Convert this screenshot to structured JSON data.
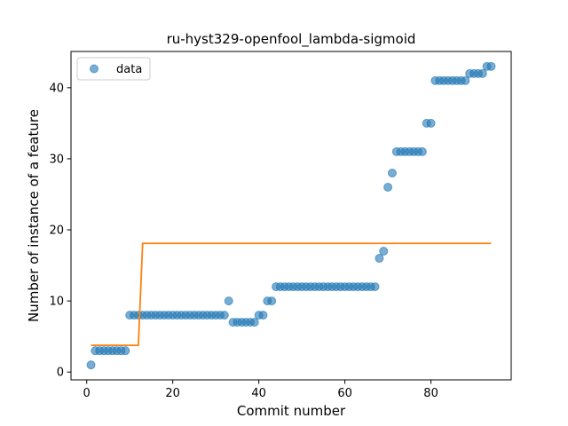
{
  "chart_data": {
    "type": "scatter",
    "title": "ru-hyst329-openfool_lambda-sigmoid",
    "xlabel": "Commit number",
    "ylabel": "Number of instance of a feature",
    "xlim": [
      -3.65,
      98.65
    ],
    "ylim": [
      -1.1,
      45.1
    ],
    "xticks": [
      0,
      20,
      40,
      60,
      80
    ],
    "yticks": [
      0,
      10,
      20,
      30,
      40
    ],
    "grid": false,
    "legend": {
      "placement": "top-left",
      "entries": [
        "data"
      ]
    },
    "colors": {
      "data": "#1f77b4",
      "fit": "#ff7f0e"
    },
    "series": [
      {
        "name": "data",
        "kind": "scatter",
        "x": [
          1,
          2,
          3,
          4,
          5,
          6,
          7,
          8,
          9,
          10,
          11,
          12,
          13,
          14,
          15,
          16,
          17,
          18,
          19,
          20,
          21,
          22,
          23,
          24,
          25,
          26,
          27,
          28,
          29,
          30,
          31,
          32,
          33,
          34,
          35,
          36,
          37,
          38,
          39,
          40,
          41,
          42,
          43,
          44,
          45,
          46,
          47,
          48,
          49,
          50,
          51,
          52,
          53,
          54,
          55,
          56,
          57,
          58,
          59,
          60,
          61,
          62,
          63,
          64,
          65,
          66,
          67,
          68,
          69,
          70,
          71,
          72,
          73,
          74,
          75,
          76,
          77,
          78,
          79,
          80,
          81,
          82,
          83,
          84,
          85,
          86,
          87,
          88,
          89,
          90,
          91,
          92,
          93,
          94
        ],
        "y": [
          1,
          3,
          3,
          3,
          3,
          3,
          3,
          3,
          3,
          8,
          8,
          8,
          8,
          8,
          8,
          8,
          8,
          8,
          8,
          8,
          8,
          8,
          8,
          8,
          8,
          8,
          8,
          8,
          8,
          8,
          8,
          8,
          10,
          7,
          7,
          7,
          7,
          7,
          7,
          8,
          8,
          10,
          10,
          12,
          12,
          12,
          12,
          12,
          12,
          12,
          12,
          12,
          12,
          12,
          12,
          12,
          12,
          12,
          12,
          12,
          12,
          12,
          12,
          12,
          12,
          12,
          12,
          16,
          17,
          26,
          28,
          31,
          31,
          31,
          31,
          31,
          31,
          31,
          35,
          35,
          41,
          41,
          41,
          41,
          41,
          41,
          41,
          41,
          42,
          42,
          42,
          42,
          43,
          43
        ]
      },
      {
        "kind": "line",
        "x": [
          1,
          12,
          13,
          94
        ],
        "y": [
          3.75,
          3.75,
          18.1,
          18.1
        ]
      }
    ]
  }
}
